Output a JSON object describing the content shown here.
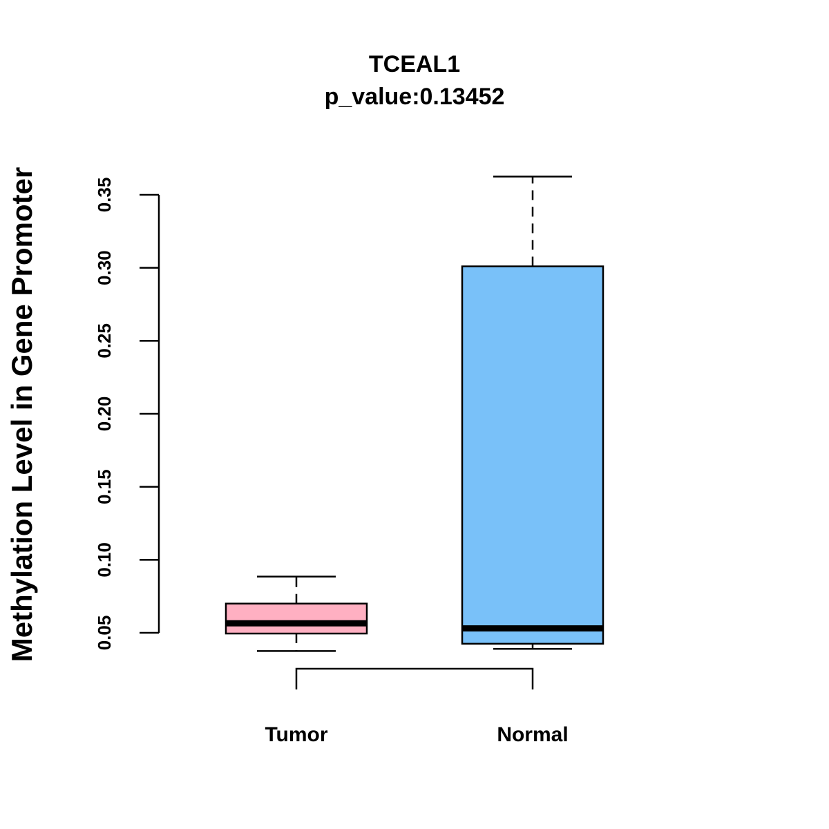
{
  "chart_data": {
    "type": "boxplot",
    "title": "TCEAL1",
    "subtitle": "p_value:0.13452",
    "xlabel": "",
    "ylabel": "Methylation Level in Gene Promoter",
    "ylim": [
      0.05,
      0.35
    ],
    "yticks": [
      {
        "value": 0.05,
        "label": "0.05"
      },
      {
        "value": 0.1,
        "label": "0.10"
      },
      {
        "value": 0.15,
        "label": "0.15"
      },
      {
        "value": 0.2,
        "label": "0.20"
      },
      {
        "value": 0.25,
        "label": "0.25"
      },
      {
        "value": 0.3,
        "label": "0.30"
      },
      {
        "value": 0.35,
        "label": "0.35"
      }
    ],
    "categories": [
      "Tumor",
      "Normal"
    ],
    "series": [
      {
        "name": "Tumor",
        "color": "#ffb0c2",
        "whisker_low": 0.0375,
        "q1": 0.0495,
        "median": 0.0565,
        "q3": 0.07,
        "whisker_high": 0.0885
      },
      {
        "name": "Normal",
        "color": "#79c1f9",
        "whisker_low": 0.039,
        "q1": 0.0425,
        "median": 0.053,
        "q3": 0.301,
        "whisker_high": 0.3625
      }
    ],
    "comparison_bracket": [
      "Tumor",
      "Normal"
    ]
  }
}
